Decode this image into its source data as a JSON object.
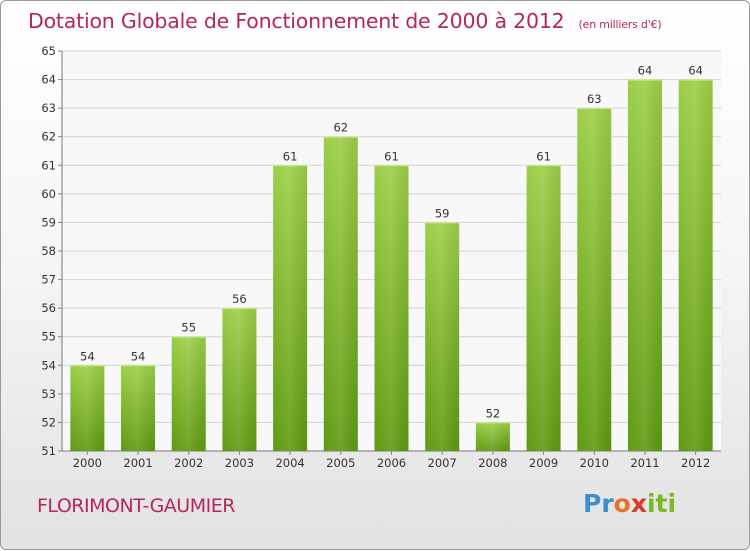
{
  "title": "Dotation Globale de Fonctionnement de 2000 à 2012",
  "unit": "(en milliers d'€)",
  "place_name": "FLORIMONT-GAUMIER",
  "logo_text": "Proxiti",
  "colors": {
    "title": "#b5255f",
    "bar_light": "#9ccf48",
    "bar_dark": "#5f9a12",
    "grid": "#d4d4d4"
  },
  "chart_data": {
    "type": "bar",
    "title": "Dotation Globale de Fonctionnement de 2000 à 2012",
    "subtitle": "(en milliers d'€)",
    "xlabel": "",
    "ylabel": "",
    "categories": [
      "2000",
      "2001",
      "2002",
      "2003",
      "2004",
      "2005",
      "2006",
      "2007",
      "2008",
      "2009",
      "2010",
      "2011",
      "2012"
    ],
    "values": [
      54,
      54,
      55,
      56,
      61,
      62,
      61,
      59,
      52,
      61,
      63,
      64,
      64
    ],
    "ylim": [
      51,
      65
    ],
    "yticks": [
      51,
      52,
      53,
      54,
      55,
      56,
      57,
      58,
      59,
      60,
      61,
      62,
      63,
      64,
      65
    ],
    "grid": true,
    "legend": "none"
  }
}
